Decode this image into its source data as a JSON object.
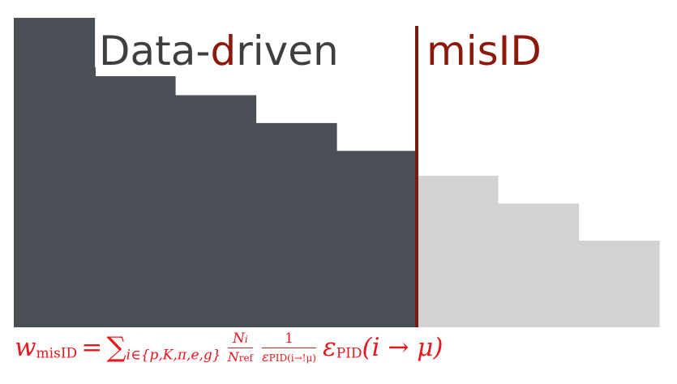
{
  "title": {
    "left": {
      "pre": "Data-",
      "accent": "d",
      "post": "riven"
    },
    "right": "misID"
  },
  "colors": {
    "dark_bar": "#4a4e55",
    "light_bar": "#d2d2d2",
    "divider": "#7a1a0e",
    "title_dark": "#3f3f3f",
    "title_accent": "#8b1a0d",
    "formula": "#e8171b"
  },
  "histogram": {
    "dark_steps": [
      1,
      0.84,
      0.75,
      0.66,
      0.57
    ],
    "light_steps": [
      0.49,
      0.4,
      0.28
    ]
  },
  "formula": {
    "w": "w",
    "w_sub": "misID",
    "equals": "=",
    "sum": "∑",
    "sum_sub": "i∈{p,K,π,e,g}",
    "frac1_num": "N",
    "frac1_num_sub": "i",
    "frac1_den": "N",
    "frac1_den_sub": "ref",
    "frac2_num": "1",
    "frac2_den": "ε",
    "frac2_den_sub": "PID(i→!μ)",
    "eps": "ε",
    "eps_sub": "PID",
    "tail": "(i → μ)"
  }
}
